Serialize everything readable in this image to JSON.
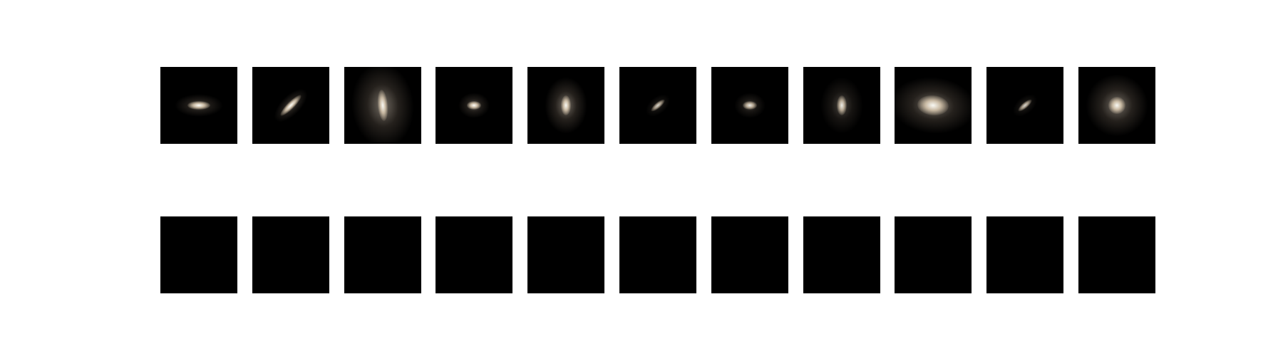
{
  "colors": {
    "background": "#ffffff",
    "tile": "#000000",
    "glow": "#fff4e6"
  },
  "top_row": {
    "name": "galaxy-images",
    "galaxies": [
      {
        "elongation": "elongated-horizontal",
        "brightness": "bright"
      },
      {
        "elongation": "elongated-diagonal",
        "brightness": "bright"
      },
      {
        "elongation": "elongated-vertical",
        "brightness": "bright-diffuse"
      },
      {
        "elongation": "compact",
        "brightness": "bright"
      },
      {
        "elongation": "slightly-vertical",
        "brightness": "bright-diffuse"
      },
      {
        "elongation": "small-diagonal",
        "brightness": "faint"
      },
      {
        "elongation": "compact",
        "brightness": "medium"
      },
      {
        "elongation": "slightly-vertical",
        "brightness": "medium"
      },
      {
        "elongation": "broad-horizontal",
        "brightness": "bright-diffuse"
      },
      {
        "elongation": "small-diagonal",
        "brightness": "faint"
      },
      {
        "elongation": "round",
        "brightness": "bright-diffuse"
      }
    ]
  },
  "bottom_row": {
    "name": "blank-panels",
    "count": 11
  }
}
